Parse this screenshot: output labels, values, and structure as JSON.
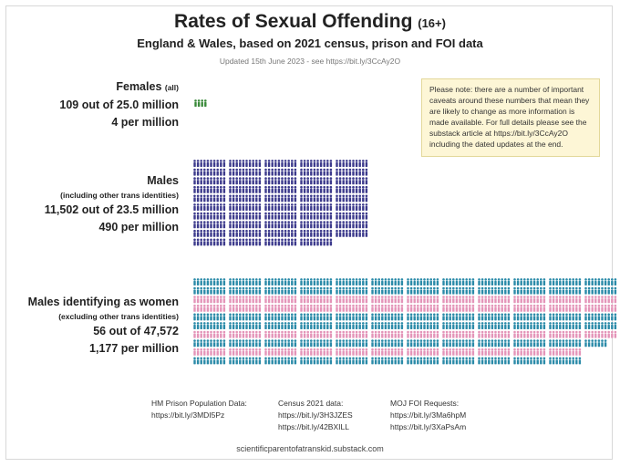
{
  "header": {
    "title": "Rates of Sexual Offending",
    "title_suffix": "(16+)",
    "subtitle": "England & Wales, based on 2021 census, prison and FOI data",
    "updated": "Updated 15th June 2023 - see https://bit.ly/3CcAy2O"
  },
  "note": "Please note: there are a number of important caveats around these numbers that mean they are likely to change as more information is made available. For full details please see the substack article at https://bit.ly/3CcAy2O including the dated updates at the end.",
  "chart_data": {
    "type": "pictogram",
    "unit": "per million",
    "groups": [
      {
        "name": "Females",
        "qualifier": "(all)",
        "count_text": "109 out of 25.0 million",
        "rate_text": "4 per million",
        "offenders": 109,
        "population_millions": 25.0,
        "rate_per_million": 4,
        "color": "#3a8a3a"
      },
      {
        "name": "Males",
        "qualifier": "(including other trans identities)",
        "count_text": "11,502 out of 23.5 million",
        "rate_text": "490 per million",
        "offenders": 11502,
        "population_millions": 23.5,
        "rate_per_million": 490,
        "color": "#3c3a8c"
      },
      {
        "name": "Males identifying as women",
        "qualifier": "(excluding other trans identities)",
        "count_text": "56 out of 47,572",
        "rate_text": "1,177 per million",
        "offenders": 56,
        "population": 47572,
        "rate_per_million": 1177,
        "colors": [
          "#2a8aa8",
          "#e494b8"
        ]
      }
    ]
  },
  "sources": [
    {
      "title": "HM Prison Population Data:",
      "links": [
        "https://bit.ly/3MDI5Pz"
      ]
    },
    {
      "title": "Census 2021 data:",
      "links": [
        "https://bit.ly/3H3JZES",
        "https://bit.ly/42BXILL"
      ]
    },
    {
      "title": "MOJ FOI Requests:",
      "links": [
        "https://bit.ly/3Ma6hpM",
        "https://bit.ly/3XaPsAm"
      ]
    }
  ],
  "footer": "scientificparentofatranskid.substack.com"
}
